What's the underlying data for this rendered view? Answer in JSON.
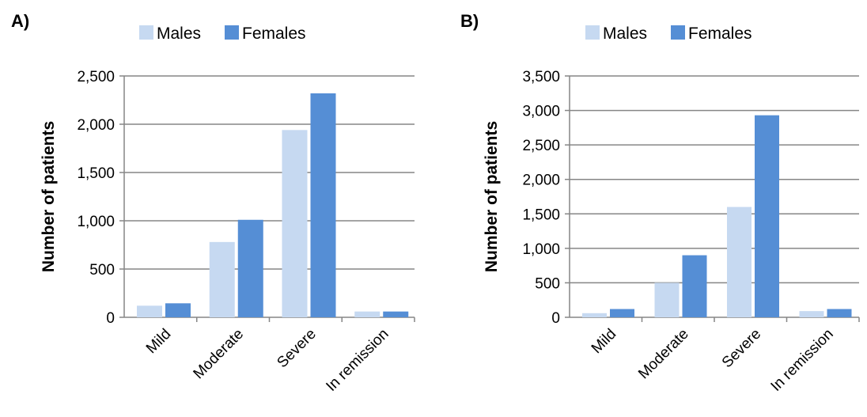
{
  "colors": {
    "males": "#c6d9f1",
    "females": "#558ed5",
    "grid": "#868686",
    "axis": "#868686"
  },
  "chart_data": [
    {
      "type": "bar",
      "panel_label": "A)",
      "categories": [
        "Mild",
        "Moderate",
        "Severe",
        "In remission"
      ],
      "series": [
        {
          "name": "Males",
          "values": [
            120,
            780,
            1940,
            60
          ]
        },
        {
          "name": "Females",
          "values": [
            145,
            1010,
            2320,
            60
          ]
        }
      ],
      "ylabel": "Number of patients",
      "xlabel": "",
      "ylim": [
        0,
        2500
      ],
      "yticks": [
        "0",
        "500",
        "1,000",
        "1,500",
        "2,000",
        "2,500"
      ],
      "ytick_values": [
        0,
        500,
        1000,
        1500,
        2000,
        2500
      ],
      "grid": true,
      "legend_position": "top"
    },
    {
      "type": "bar",
      "panel_label": "B)",
      "categories": [
        "Mild",
        "Moderate",
        "Severe",
        "In remission"
      ],
      "series": [
        {
          "name": "Males",
          "values": [
            60,
            500,
            1600,
            90
          ]
        },
        {
          "name": "Females",
          "values": [
            120,
            900,
            2930,
            120
          ]
        }
      ],
      "ylabel": "Number of patients",
      "xlabel": "",
      "ylim": [
        0,
        3500
      ],
      "yticks": [
        "0",
        "500",
        "1,000",
        "1,500",
        "2,000",
        "2,500",
        "3,000",
        "3,500"
      ],
      "ytick_values": [
        0,
        500,
        1000,
        1500,
        2000,
        2500,
        3000,
        3500
      ],
      "grid": true,
      "legend_position": "top"
    }
  ]
}
